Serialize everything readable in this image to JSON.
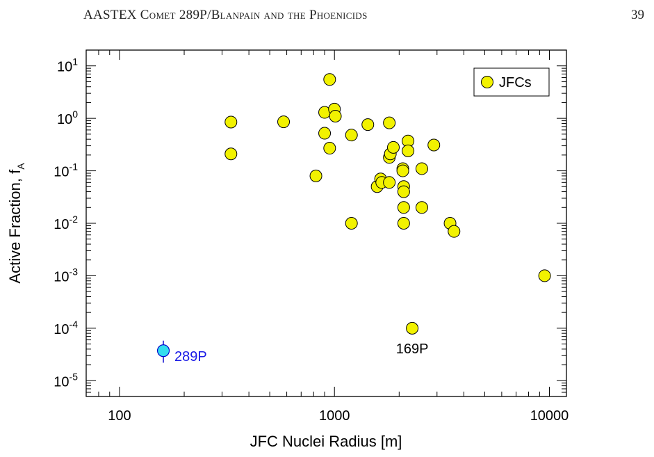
{
  "header": {
    "title": "AASTEX Comet 289P/Blanpain and the Phoenicids",
    "page_number": "39"
  },
  "chart_data": {
    "type": "scatter",
    "xlabel": "JFC Nuclei Radius [m]",
    "ylabel": "Active Fraction, f",
    "ylabel_subscript": "A",
    "x_scale": "log",
    "y_scale": "log",
    "xlim": [
      70,
      12000
    ],
    "ylim": [
      5e-06,
      20
    ],
    "x_ticks": [
      {
        "value": 100,
        "label": "100"
      },
      {
        "value": 1000,
        "label": "1000"
      },
      {
        "value": 10000,
        "label": "10000"
      }
    ],
    "y_ticks": [
      {
        "value": 1e-05,
        "base": "10",
        "exp": "-5"
      },
      {
        "value": 0.0001,
        "base": "10",
        "exp": "-4"
      },
      {
        "value": 0.001,
        "base": "10",
        "exp": "-3"
      },
      {
        "value": 0.01,
        "base": "10",
        "exp": "-2"
      },
      {
        "value": 0.1,
        "base": "10",
        "exp": "-1"
      },
      {
        "value": 1,
        "base": "10",
        "exp": "0"
      },
      {
        "value": 10,
        "base": "10",
        "exp": "1"
      }
    ],
    "legend": {
      "label": "JFCs",
      "position": "top-right"
    },
    "series": [
      {
        "name": "JFCs",
        "color": "#f2f200",
        "edge_color": "#000000",
        "points": [
          [
            330,
            0.85
          ],
          [
            330,
            0.21
          ],
          [
            580,
            0.86
          ],
          [
            820,
            0.08
          ],
          [
            950,
            5.5
          ],
          [
            900,
            1.3
          ],
          [
            1000,
            1.5
          ],
          [
            1010,
            1.1
          ],
          [
            900,
            0.52
          ],
          [
            950,
            0.27
          ],
          [
            1200,
            0.48
          ],
          [
            1200,
            0.01
          ],
          [
            1430,
            0.76
          ],
          [
            1580,
            0.05
          ],
          [
            1640,
            0.07
          ],
          [
            1660,
            0.06
          ],
          [
            1800,
            0.82
          ],
          [
            1800,
            0.06
          ],
          [
            1800,
            0.18
          ],
          [
            1820,
            0.21
          ],
          [
            1880,
            0.28
          ],
          [
            2080,
            0.11
          ],
          [
            2080,
            0.1
          ],
          [
            2100,
            0.05
          ],
          [
            2100,
            0.04
          ],
          [
            2100,
            0.02
          ],
          [
            2100,
            0.01
          ],
          [
            2200,
            0.37
          ],
          [
            2200,
            0.24
          ],
          [
            2550,
            0.11
          ],
          [
            2550,
            0.02
          ],
          [
            2900,
            0.31
          ],
          [
            3450,
            0.01
          ],
          [
            3600,
            0.007
          ],
          [
            9500,
            0.001
          ],
          [
            2300,
            0.0001
          ]
        ]
      },
      {
        "name": "289P",
        "color": "#33ddee",
        "edge_color": "#0000cc",
        "points": [
          [
            160,
            3.73e-05
          ]
        ],
        "y_err": [
          [
            2.2e-05,
            5.8e-05
          ]
        ]
      }
    ],
    "annotations": [
      {
        "text": "289P",
        "x": 160,
        "y": 3.73e-05,
        "color": "#1a1ae6"
      },
      {
        "text": "169P",
        "x": 2300,
        "y": 0.0001,
        "color": "#000000"
      }
    ],
    "grid": false
  }
}
